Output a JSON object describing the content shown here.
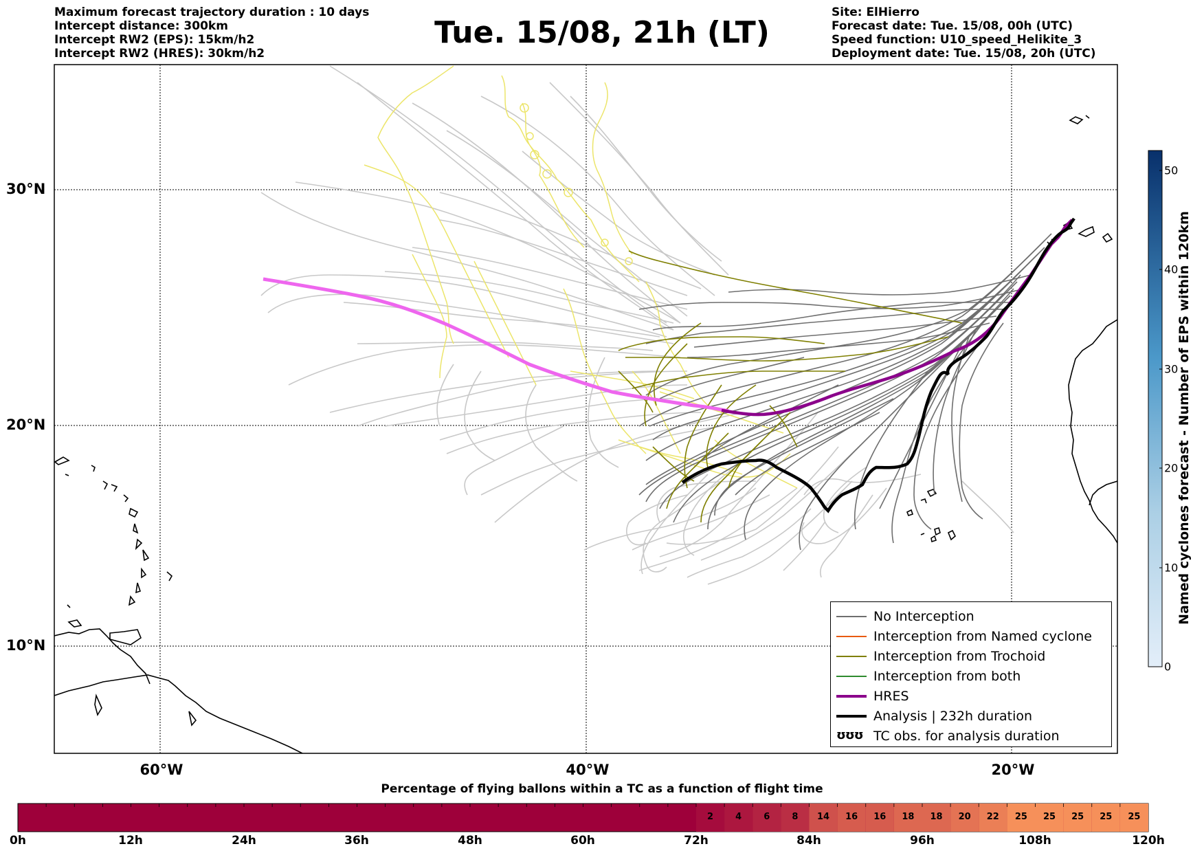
{
  "header_left": {
    "line1": "Maximum forecast trajectory duration : 10 days",
    "line2": "Intercept distance: 300km",
    "line3": "Intercept RW2 (EPS):  15km/h2",
    "line4": "Intercept RW2 (HRES): 30km/h2"
  },
  "title": "Tue. 15/08, 21h (LT)",
  "header_right": {
    "line1": "Site: ElHierro",
    "line2": "Forecast date: Tue. 15/08, 00h (UTC)",
    "line3": "Speed function: U10_speed_Helikite_3",
    "line4": "Deployment date: Tue. 15/08, 20h (UTC)"
  },
  "map": {
    "lat_labels": [
      "30°N",
      "20°N",
      "10°N"
    ],
    "lon_labels": [
      "60°W",
      "40°W",
      "20°W"
    ],
    "colors": {
      "eps_no_interception": "#c8c8c8",
      "eps_dark": "#6e6e6e",
      "trochoid": "#7f7f00",
      "named_cyclone": "#e85a10",
      "both": "#2e8b2e",
      "hres": "#8b008b",
      "hres_light": "#ee66ee",
      "analysis": "#000000",
      "yellow_tracks": "#ece56a"
    }
  },
  "legend": {
    "items": [
      {
        "label": "No Interception",
        "color": "#6e6e6e"
      },
      {
        "label": "Interception from Named cyclone",
        "color": "#e85a10"
      },
      {
        "label": "Interception from Trochoid",
        "color": "#7f7f00"
      },
      {
        "label": "Interception from both",
        "color": "#2e8b2e"
      },
      {
        "label": "HRES",
        "color": "#8b008b"
      },
      {
        "label": "Analysis | 232h duration",
        "color": "#000000"
      },
      {
        "label": "TC obs. for analysis duration",
        "symbol": "ʊʊʊ"
      }
    ]
  },
  "colorbar": {
    "label": "Named cyclones forecast - Number of EPS within 120km",
    "ticks": [
      "0",
      "10",
      "20",
      "30",
      "40",
      "50"
    ],
    "min": 0,
    "max": 52
  },
  "timebar": {
    "title": "Percentage of flying ballons within a TC as a function of flight time",
    "ticks": [
      "0h",
      "12h",
      "24h",
      "36h",
      "48h",
      "60h",
      "72h",
      "84h",
      "96h",
      "108h",
      "120h"
    ],
    "percent_values": [
      "2",
      "4",
      "6",
      "8",
      "14",
      "16",
      "16",
      "18",
      "18",
      "20",
      "22",
      "25",
      "25",
      "25",
      "25",
      "25"
    ],
    "colors": {
      "base": "#9e003a",
      "low": "#c0203f",
      "mid": "#e25a47",
      "high": "#f6905a"
    }
  }
}
